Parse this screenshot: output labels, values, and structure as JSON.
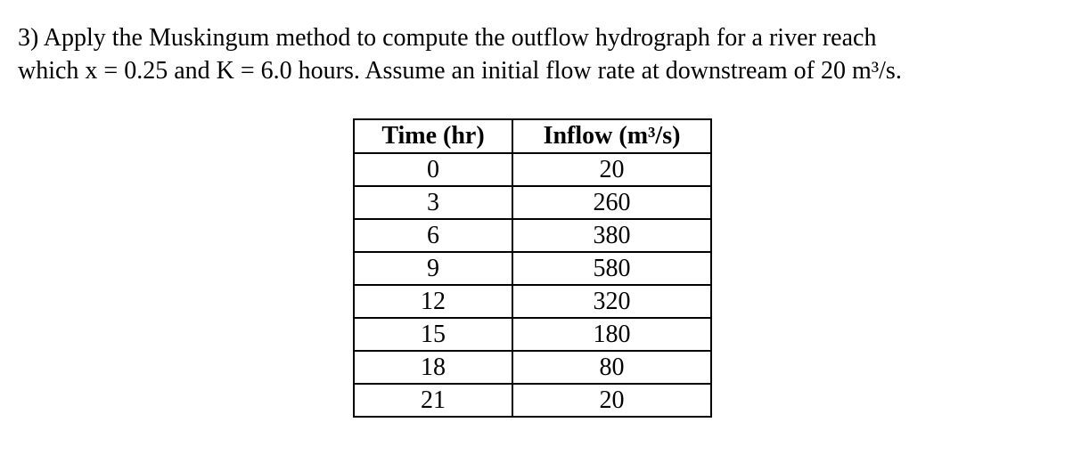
{
  "problem": {
    "line1": "3) Apply the Muskingum method to compute the outflow hydrograph for a river reach",
    "line2": "which x = 0.25 and K = 6.0 hours. Assume an initial flow rate at downstream of 20 m³/s."
  },
  "table": {
    "headers": {
      "time": "Time (hr)",
      "inflow": "Inflow (m³/s)"
    },
    "rows": [
      {
        "time": "0",
        "inflow": "20"
      },
      {
        "time": "3",
        "inflow": "260"
      },
      {
        "time": "6",
        "inflow": "380"
      },
      {
        "time": "9",
        "inflow": "580"
      },
      {
        "time": "12",
        "inflow": "320"
      },
      {
        "time": "15",
        "inflow": "180"
      },
      {
        "time": "18",
        "inflow": "80"
      },
      {
        "time": "21",
        "inflow": "20"
      }
    ]
  }
}
